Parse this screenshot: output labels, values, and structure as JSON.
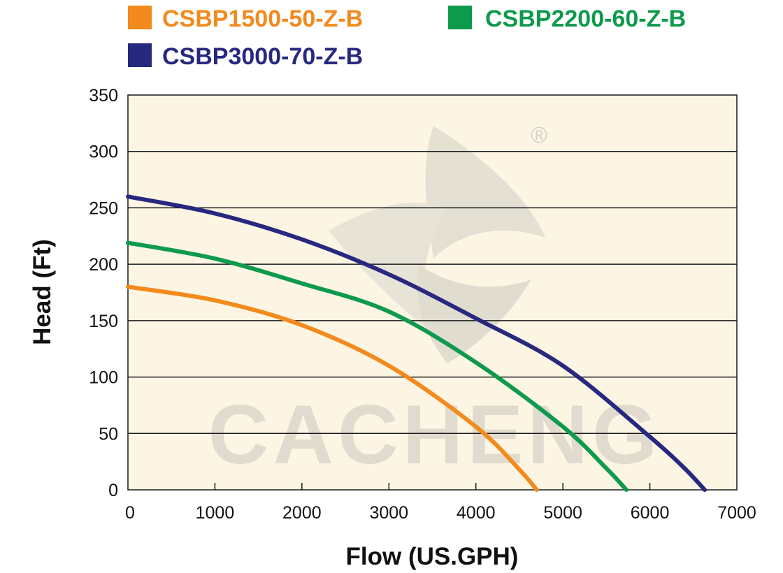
{
  "chart_data": {
    "type": "line",
    "xlabel": "Flow (US.GPH)",
    "ylabel": "Head (Ft)",
    "xlim": [
      0,
      7000
    ],
    "ylim": [
      0,
      350
    ],
    "x_ticks": [
      "0",
      "1000",
      "2000",
      "3000",
      "4000",
      "5000",
      "6000",
      "7000"
    ],
    "y_ticks": [
      "0",
      "50",
      "100",
      "150",
      "200",
      "250",
      "300",
      "350"
    ],
    "grid": "horizontal",
    "legend_position": "top",
    "plot_background": "#fdf5e3",
    "series": [
      {
        "name": "CSBP1500-50-Z-B",
        "color": "#f28a1d",
        "x": [
          0,
          1000,
          2000,
          3000,
          4000,
          4500,
          4700
        ],
        "y": [
          180,
          168,
          146,
          110,
          56,
          18,
          0
        ]
      },
      {
        "name": "CSBP2200-60-Z-B",
        "color": "#0e9a4c",
        "x": [
          0,
          1000,
          2000,
          3000,
          4000,
          5000,
          5500,
          5730
        ],
        "y": [
          219,
          205,
          183,
          158,
          113,
          56,
          19,
          0
        ]
      },
      {
        "name": "CSBP3000-70-Z-B",
        "color": "#27287f",
        "x": [
          0,
          1000,
          2000,
          3000,
          4000,
          5000,
          6000,
          6400,
          6630
        ],
        "y": [
          260,
          245,
          222,
          191,
          152,
          110,
          47,
          19,
          0
        ]
      }
    ],
    "watermark": {
      "text": "CACHENG",
      "mark": "®",
      "logo_icon": "cacheng-logo-icon"
    }
  }
}
